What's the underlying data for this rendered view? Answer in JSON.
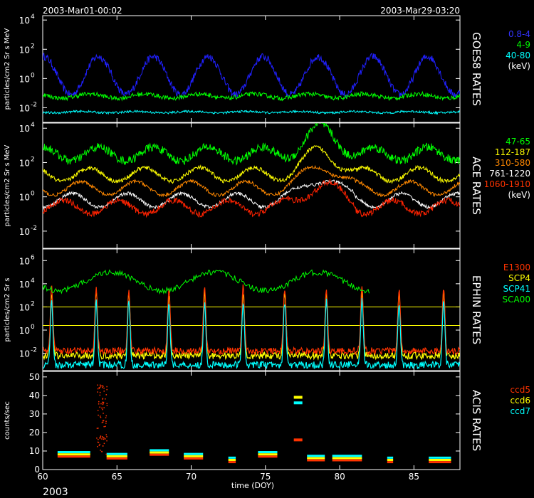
{
  "header": {
    "start": "2003-Mar01-00:02",
    "end": "2003-Mar29-03:20"
  },
  "footer": {
    "year": "2003"
  },
  "chart_data": {
    "type": "line",
    "xlabel": "time (DOY)",
    "xlim": [
      60,
      88.1
    ],
    "xticks": [
      "60",
      "65",
      "70",
      "75",
      "80",
      "85"
    ],
    "panels": [
      {
        "id": "goes",
        "side_title": "GOES8 RATES",
        "ylabel": "particles/cm2 Sr s MeV",
        "scale": "log",
        "ylim": [
          -3,
          4.3
        ],
        "yticks": [
          {
            "exp": "4"
          },
          {
            "exp": "2"
          },
          {
            "exp": "0"
          },
          {
            "exp": "-2"
          }
        ],
        "legend": [
          {
            "text": "0.8-4",
            "color": "#3333ff"
          },
          {
            "text": "4-9",
            "color": "#00ff00"
          },
          {
            "text": "40-80",
            "color": "#00ffff"
          },
          {
            "text": "(keV)",
            "color": "#ffffff"
          }
        ],
        "series": [
          {
            "color": "#2020ff",
            "base": 0.2,
            "amp": 1.3,
            "noise": 0.5
          },
          {
            "color": "#00ff00",
            "base": -1.2,
            "amp": 0.15,
            "noise": 0.3
          },
          {
            "color": "#00ffff",
            "base": -2.3,
            "amp": 0.05,
            "noise": 0.15
          }
        ]
      },
      {
        "id": "ace",
        "side_title": "ACE RATES",
        "ylabel": "particles/cm2 Sr s MeV",
        "scale": "log",
        "ylim": [
          -3,
          4.3
        ],
        "yticks": [
          {
            "exp": "4"
          },
          {
            "exp": "2"
          },
          {
            "exp": "0"
          },
          {
            "exp": "-2"
          }
        ],
        "legend": [
          {
            "text": "47-65",
            "color": "#00ff00"
          },
          {
            "text": "112-187",
            "color": "#ffff00"
          },
          {
            "text": "310-580",
            "color": "#ff8800"
          },
          {
            "text": "761-1220",
            "color": "#ffffff"
          },
          {
            "text": "1060-1910",
            "color": "#ff3300"
          },
          {
            "text": "(keV)",
            "color": "#ffffff"
          }
        ],
        "series": [
          {
            "color": "#00ff00",
            "base": 2.5,
            "amp": 0.4,
            "noise": 0.5
          },
          {
            "color": "#ffff00",
            "base": 1.3,
            "amp": 0.4,
            "noise": 0.25
          },
          {
            "color": "#ff8800",
            "base": 0.5,
            "amp": 0.4,
            "noise": 0.2
          },
          {
            "color": "#ffffff",
            "base": -0.2,
            "amp": 0.4,
            "noise": 0.2
          },
          {
            "color": "#ff2200",
            "base": -0.6,
            "amp": 0.4,
            "noise": 0.35
          }
        ]
      },
      {
        "id": "ephin",
        "side_title": "EPHIN RATES",
        "ylabel": "particles/cm2 Sr s",
        "scale": "log",
        "ylim": [
          -3.5,
          7
        ],
        "yticks": [
          {
            "exp": "6"
          },
          {
            "exp": "4"
          },
          {
            "exp": "2"
          },
          {
            "exp": "0"
          },
          {
            "exp": "-2"
          }
        ],
        "hlines": [
          2.0,
          0.4
        ],
        "legend": [
          {
            "text": "E1300",
            "color": "#ff3300"
          },
          {
            "text": "SCP4",
            "color": "#ffff00"
          },
          {
            "text": "SCP41",
            "color": "#00ffff"
          },
          {
            "text": "SCA00",
            "color": "#00ff00"
          }
        ],
        "spikes": [
          60.6,
          63.6,
          65.8,
          68.5,
          70.9,
          73.5,
          76.3,
          79.1,
          81.5,
          84.0,
          87.0
        ]
      },
      {
        "id": "acis",
        "side_title": "ACIS RATES",
        "ylabel": "counts/sec",
        "scale": "linear",
        "ylim": [
          0,
          53
        ],
        "yticks": [
          {
            "label": "50",
            "v": 50
          },
          {
            "label": "40",
            "v": 40
          },
          {
            "label": "30",
            "v": 30
          },
          {
            "label": "20",
            "v": 20
          },
          {
            "label": "10",
            "v": 10
          },
          {
            "label": "0",
            "v": 0
          }
        ],
        "legend": [
          {
            "text": "ccd5",
            "color": "#ff3300"
          },
          {
            "text": "ccd6",
            "color": "#ffff00"
          },
          {
            "text": "ccd7",
            "color": "#00ffff"
          }
        ],
        "segments": [
          {
            "x0": 61.0,
            "x1": 63.2,
            "y": 7
          },
          {
            "x0": 64.3,
            "x1": 65.7,
            "y": 6
          },
          {
            "x0": 67.2,
            "x1": 68.5,
            "y": 8
          },
          {
            "x0": 69.5,
            "x1": 70.8,
            "y": 6
          },
          {
            "x0": 72.5,
            "x1": 73.0,
            "y": 4
          },
          {
            "x0": 74.5,
            "x1": 75.8,
            "y": 7
          },
          {
            "x0": 77.8,
            "x1": 79.0,
            "y": 5
          },
          {
            "x0": 79.5,
            "x1": 81.5,
            "y": 5
          },
          {
            "x0": 83.2,
            "x1": 83.6,
            "y": 4
          },
          {
            "x0": 86.0,
            "x1": 87.5,
            "y": 4
          }
        ],
        "markers": [
          {
            "x": 77.2,
            "y": 39,
            "color": "#ffff00"
          },
          {
            "x": 77.2,
            "y": 36,
            "color": "#00ffff"
          },
          {
            "x": 77.2,
            "y": 16,
            "color": "#ff3300"
          }
        ],
        "burst": {
          "x0": 63.6,
          "x1": 64.3,
          "ymax": 46,
          "color": "#ff3300"
        }
      }
    ]
  }
}
